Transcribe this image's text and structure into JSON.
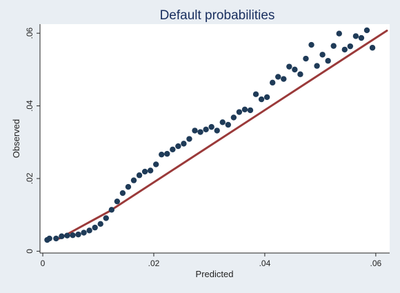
{
  "chart_data": {
    "type": "scatter",
    "title": "Default probabilities",
    "xlabel": "Predicted",
    "ylabel": "Observed",
    "xlim": [
      -0.0005,
      0.0625
    ],
    "ylim": [
      -0.0005,
      0.0625
    ],
    "x_ticks": [
      0,
      0.02,
      0.04,
      0.06
    ],
    "x_tick_labels": [
      "0",
      ".02",
      ".04",
      ".06"
    ],
    "y_ticks": [
      0,
      0.02,
      0.04,
      0.06
    ],
    "y_tick_labels": [
      "0",
      ".02",
      ".04",
      ".06"
    ],
    "grid": false,
    "series": [
      {
        "kind": "points",
        "color": "#1f3b58",
        "x": [
          0.0008,
          0.0012,
          0.0024,
          0.0034,
          0.0044,
          0.0054,
          0.0064,
          0.0074,
          0.0084,
          0.0094,
          0.0104,
          0.0114,
          0.0124,
          0.0134,
          0.0144,
          0.0154,
          0.0164,
          0.0174,
          0.0184,
          0.0194,
          0.0204,
          0.0214,
          0.0224,
          0.0234,
          0.0244,
          0.0254,
          0.0264,
          0.0274,
          0.0284,
          0.0294,
          0.0304,
          0.0314,
          0.0324,
          0.0334,
          0.0344,
          0.0354,
          0.0364,
          0.0374,
          0.0384,
          0.0394,
          0.0404,
          0.0414,
          0.0424,
          0.0434,
          0.0444,
          0.0454,
          0.0464,
          0.0474,
          0.0484,
          0.0494,
          0.0504,
          0.0514,
          0.0524,
          0.0534,
          0.0544,
          0.0554,
          0.0564,
          0.0574,
          0.0584,
          0.0594
        ],
        "y": [
          0.0031,
          0.0035,
          0.0035,
          0.0041,
          0.0043,
          0.0044,
          0.0046,
          0.0051,
          0.0057,
          0.0065,
          0.0075,
          0.0091,
          0.0114,
          0.0137,
          0.016,
          0.0177,
          0.0195,
          0.0209,
          0.0219,
          0.0222,
          0.0239,
          0.0266,
          0.0268,
          0.028,
          0.0289,
          0.0296,
          0.0309,
          0.0332,
          0.0328,
          0.0335,
          0.0342,
          0.0332,
          0.0355,
          0.0348,
          0.0368,
          0.0383,
          0.039,
          0.0388,
          0.0432,
          0.0418,
          0.0424,
          0.0464,
          0.048,
          0.0474,
          0.0508,
          0.05,
          0.0487,
          0.053,
          0.0568,
          0.051,
          0.0541,
          0.0524,
          0.0565,
          0.0599,
          0.0555,
          0.0564,
          0.0592,
          0.0587,
          0.0608,
          0.056
        ]
      },
      {
        "kind": "line",
        "color": "#9b3a3a",
        "x": [
          0.003,
          0.012,
          0.062
        ],
        "y": [
          0.0035,
          0.011,
          0.0607
        ]
      }
    ]
  }
}
